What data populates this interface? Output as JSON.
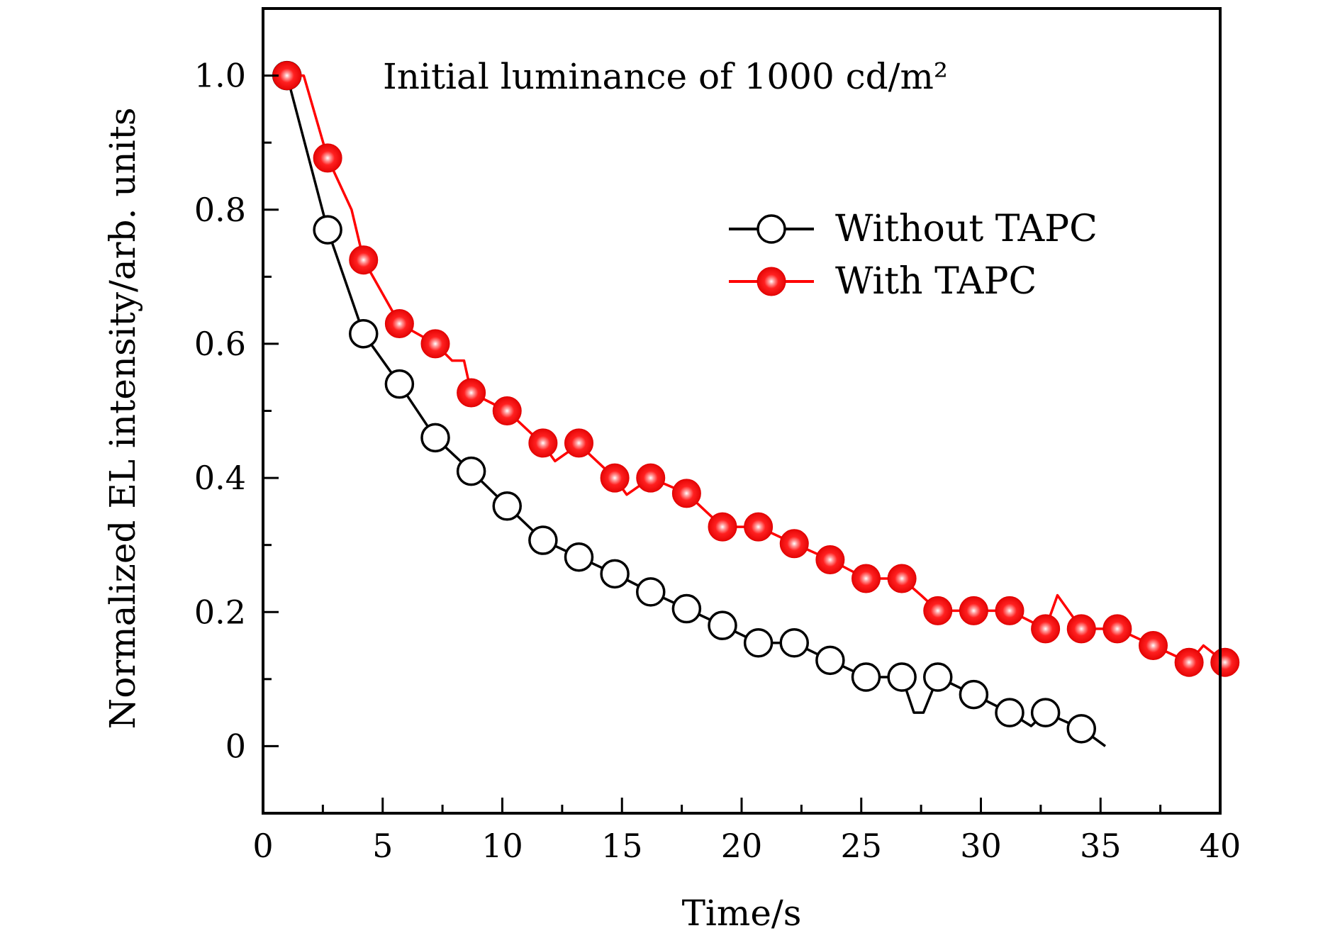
{
  "chart_data": {
    "type": "line",
    "title": "",
    "annotation": "Initial luminance of 1000 cd/m²",
    "xlabel": "Time/s",
    "ylabel": "Normalized EL intensity/arb. units",
    "xlim": [
      0,
      40
    ],
    "ylim": [
      -0.1,
      1.1
    ],
    "xticks": [
      0,
      5,
      10,
      15,
      20,
      25,
      30,
      35,
      40
    ],
    "xtick_labels": [
      "0",
      "5",
      "10",
      "15",
      "20",
      "25",
      "30",
      "35",
      "40"
    ],
    "yticks": [
      0,
      0.2,
      0.4,
      0.6,
      0.8,
      1.0
    ],
    "ytick_labels": [
      "0",
      "0.2",
      "0.4",
      "0.6",
      "0.8",
      "1.0"
    ],
    "grid": false,
    "legend_position": "upper-right",
    "series": [
      {
        "name": "Without TAPC",
        "color": "#000000",
        "marker": "open-circle",
        "line": [
          [
            1,
            1.0
          ],
          [
            2.7,
            0.77
          ],
          [
            4.2,
            0.615
          ],
          [
            5.7,
            0.54
          ],
          [
            7.2,
            0.46
          ],
          [
            8.7,
            0.41
          ],
          [
            10.2,
            0.358
          ],
          [
            11.7,
            0.307
          ],
          [
            13.2,
            0.282
          ],
          [
            14.7,
            0.257
          ],
          [
            16.2,
            0.23
          ],
          [
            17.7,
            0.205
          ],
          [
            19.2,
            0.18
          ],
          [
            20.7,
            0.154
          ],
          [
            22.2,
            0.154
          ],
          [
            23.7,
            0.128
          ],
          [
            25.2,
            0.103
          ],
          [
            26.7,
            0.103
          ],
          [
            27.2,
            0.05
          ],
          [
            27.6,
            0.05
          ],
          [
            28.2,
            0.103
          ],
          [
            29.7,
            0.077
          ],
          [
            31.2,
            0.05
          ],
          [
            32.1,
            0.03
          ],
          [
            32.7,
            0.05
          ],
          [
            34.2,
            0.026
          ],
          [
            35.2,
            0.0
          ]
        ],
        "markers": [
          [
            1,
            1.0
          ],
          [
            2.7,
            0.77
          ],
          [
            4.2,
            0.615
          ],
          [
            5.7,
            0.54
          ],
          [
            7.2,
            0.46
          ],
          [
            8.7,
            0.41
          ],
          [
            10.2,
            0.358
          ],
          [
            11.7,
            0.307
          ],
          [
            13.2,
            0.282
          ],
          [
            14.7,
            0.257
          ],
          [
            16.2,
            0.23
          ],
          [
            17.7,
            0.205
          ],
          [
            19.2,
            0.18
          ],
          [
            20.7,
            0.154
          ],
          [
            22.2,
            0.154
          ],
          [
            23.7,
            0.128
          ],
          [
            25.2,
            0.103
          ],
          [
            26.7,
            0.103
          ],
          [
            28.2,
            0.103
          ],
          [
            29.7,
            0.077
          ],
          [
            31.2,
            0.05
          ],
          [
            32.7,
            0.05
          ],
          [
            34.2,
            0.026
          ]
        ]
      },
      {
        "name": "With TAPC",
        "color": "#ff0000",
        "marker": "filled-sphere",
        "line": [
          [
            1,
            1.0
          ],
          [
            1.7,
            1.0
          ],
          [
            2.7,
            0.877
          ],
          [
            3.7,
            0.8
          ],
          [
            4.2,
            0.725
          ],
          [
            5.7,
            0.63
          ],
          [
            7.2,
            0.6
          ],
          [
            7.9,
            0.575
          ],
          [
            8.4,
            0.575
          ],
          [
            8.7,
            0.527
          ],
          [
            10.2,
            0.5
          ],
          [
            11.7,
            0.45
          ],
          [
            12.2,
            0.425
          ],
          [
            13.2,
            0.45
          ],
          [
            14.7,
            0.4
          ],
          [
            15.2,
            0.375
          ],
          [
            16.2,
            0.4
          ],
          [
            17.7,
            0.377
          ],
          [
            19.2,
            0.327
          ],
          [
            20.7,
            0.327
          ],
          [
            22.2,
            0.302
          ],
          [
            23.7,
            0.278
          ],
          [
            25.2,
            0.25
          ],
          [
            26.7,
            0.25
          ],
          [
            27.5,
            0.225
          ],
          [
            28.2,
            0.202
          ],
          [
            29.7,
            0.202
          ],
          [
            31.2,
            0.202
          ],
          [
            32.7,
            0.175
          ],
          [
            33.2,
            0.225
          ],
          [
            34.2,
            0.175
          ],
          [
            35.7,
            0.175
          ],
          [
            37.2,
            0.15
          ],
          [
            38.7,
            0.125
          ],
          [
            39.3,
            0.15
          ],
          [
            40.2,
            0.125
          ]
        ],
        "markers": [
          [
            1,
            1.0
          ],
          [
            2.7,
            0.877
          ],
          [
            4.2,
            0.725
          ],
          [
            5.7,
            0.63
          ],
          [
            7.2,
            0.6
          ],
          [
            8.7,
            0.527
          ],
          [
            10.2,
            0.5
          ],
          [
            11.7,
            0.452
          ],
          [
            13.2,
            0.452
          ],
          [
            14.7,
            0.4
          ],
          [
            16.2,
            0.4
          ],
          [
            17.7,
            0.377
          ],
          [
            19.2,
            0.327
          ],
          [
            20.7,
            0.327
          ],
          [
            22.2,
            0.302
          ],
          [
            23.7,
            0.278
          ],
          [
            25.2,
            0.25
          ],
          [
            26.7,
            0.25
          ],
          [
            28.2,
            0.202
          ],
          [
            29.7,
            0.202
          ],
          [
            31.2,
            0.202
          ],
          [
            32.7,
            0.175
          ],
          [
            34.2,
            0.175
          ],
          [
            35.7,
            0.175
          ],
          [
            37.2,
            0.15
          ],
          [
            38.7,
            0.125
          ],
          [
            40.2,
            0.125
          ]
        ]
      }
    ]
  }
}
